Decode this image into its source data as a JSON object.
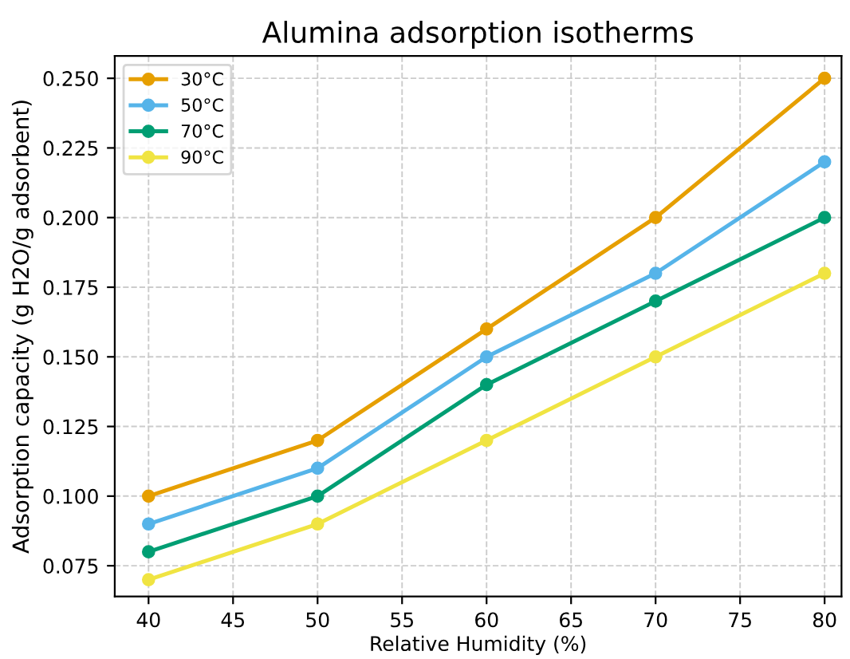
{
  "chart_data": {
    "type": "line",
    "title": "Alumina adsorption isotherms",
    "xlabel": "Relative Humidity (%)",
    "ylabel": "Adsorption capacity (g H2O/g adsorbent)",
    "x": [
      40,
      50,
      60,
      70,
      80
    ],
    "series": [
      {
        "name": "30°C",
        "color": "#e69f00",
        "values": [
          0.1,
          0.12,
          0.16,
          0.2,
          0.25
        ]
      },
      {
        "name": "50°C",
        "color": "#56b4e9",
        "values": [
          0.09,
          0.11,
          0.15,
          0.18,
          0.22
        ]
      },
      {
        "name": "70°C",
        "color": "#009e73",
        "values": [
          0.08,
          0.1,
          0.14,
          0.17,
          0.2
        ]
      },
      {
        "name": "90°C",
        "color": "#f0e442",
        "values": [
          0.07,
          0.09,
          0.12,
          0.15,
          0.18
        ]
      }
    ],
    "xlim": [
      38,
      81
    ],
    "xticks": [
      40,
      45,
      50,
      55,
      60,
      65,
      70,
      75,
      80
    ],
    "ylim": [
      0.064,
      0.258
    ],
    "yticks": [
      {
        "value": 0.075,
        "label": "0.075"
      },
      {
        "value": 0.1,
        "label": "0.100"
      },
      {
        "value": 0.125,
        "label": "0.125"
      },
      {
        "value": 0.15,
        "label": "0.150"
      },
      {
        "value": 0.175,
        "label": "0.175"
      },
      {
        "value": 0.2,
        "label": "0.200"
      },
      {
        "value": 0.225,
        "label": "0.225"
      },
      {
        "value": 0.25,
        "label": "0.250"
      }
    ],
    "grid": true,
    "legend": "top left",
    "marker": "circle",
    "line_style": "solid"
  }
}
